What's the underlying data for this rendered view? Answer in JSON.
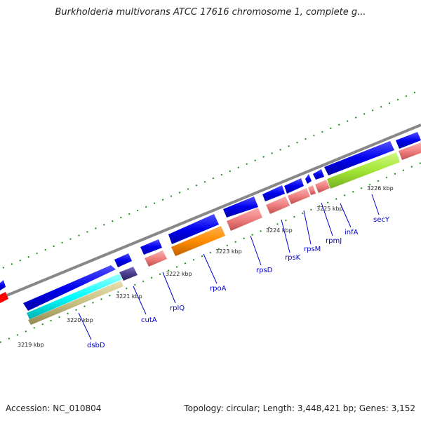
{
  "title": "Burkholderia multivorans ATCC 17616 chromosome 1, complete g...",
  "footer": {
    "accession": "Accession: NC_010804",
    "topology": "Topology: circular; Length: 3,448,421 bp; Genes: 3,152"
  },
  "kbp_labels": [
    "3219 kbp",
    "3220 kbp",
    "3221 kbp",
    "3222 kbp",
    "3223 kbp",
    "3224 kbp",
    "3225 kbp",
    "3226 kbp"
  ],
  "gene_labels": [
    "dsbD",
    "cutA",
    "rplQ",
    "rpoA",
    "rpsD",
    "rpsK",
    "rpsM",
    "rpmJ",
    "infA",
    "secY"
  ],
  "colors": {
    "cds": "#0000ee",
    "rrna_like": "#f08080",
    "rpoA": "#ff8c00",
    "secY": "#a3e635",
    "dsbD_a": "#00ffff",
    "dsbD_b": "#c8c080",
    "cutA": "#4b3f8c",
    "red_feature": "#ff0000",
    "backbone": "#888888",
    "ticks": "#228b22",
    "label": "#0000cc"
  }
}
